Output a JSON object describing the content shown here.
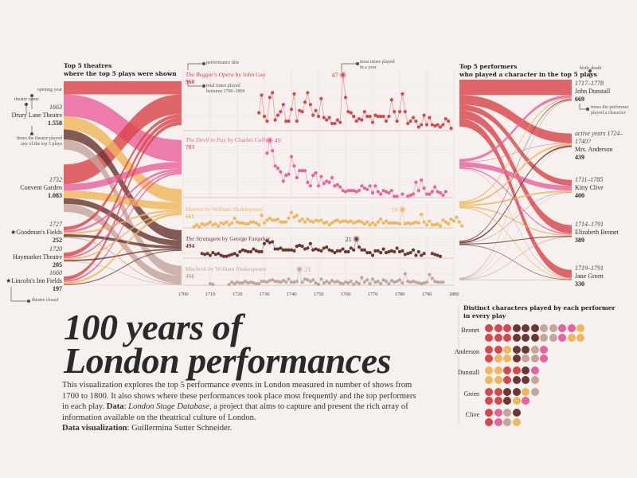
{
  "title_line1": "100 years of",
  "title_line2": "London performances",
  "description": {
    "p1": "This visualization explores the top 5 performance events in London measured in number of shows from 1700 to 1800. It also shows where these performances took place most frequently and the top performers in each play. ",
    "data_label": "Data",
    "p2": ": ",
    "source": "London Stage Database",
    "p3": ", a project that aims to capture and present the rich array of information available on the theatrical culture of London.",
    "credit_label": "Data visualization",
    "credit": ": Guillermina Sutter Schneider."
  },
  "colors": {
    "beggar": "#d9454b",
    "devil": "#e9629c",
    "hamlet": "#efb65b",
    "stratagem": "#6a3833",
    "macbeth": "#c3a59c",
    "background": "#f6f1ee"
  },
  "theatres_header": [
    "Top 5 theatres",
    "where the top 5 plays were shown"
  ],
  "performers_header": [
    "Top 5 performers",
    "who played a character in the top 5 plays"
  ],
  "distinct_header": [
    "Distinct characters played by each performer",
    "in every play"
  ],
  "annotations": {
    "opening_year": "opening year",
    "theatre_name": "theatre name",
    "times_theatre": [
      "times the theatre played",
      "any of the top 5 plays"
    ],
    "theatre_closed": "theatre closed",
    "performance_title": "performance title",
    "total_times": [
      "total times played",
      "between 1700–1800"
    ],
    "most_times": [
      "most times played",
      "in a year"
    ],
    "birth_death": "birth–death",
    "times_performer": [
      "times the performer",
      "played a character"
    ]
  },
  "theatres": [
    {
      "name": "Drury Lane Theatre",
      "year": "1663",
      "count": "1.558",
      "closed": false
    },
    {
      "name": "Convent Garden",
      "year": "1732",
      "count": "1.083",
      "closed": false
    },
    {
      "name": "Goodman's Fields",
      "year": "1727",
      "count": "252",
      "closed": true
    },
    {
      "name": "Haymarket Theatre",
      "year": "1720",
      "count": "205",
      "closed": false
    },
    {
      "name": "Lincoln's Inn Fields",
      "year": "1660",
      "count": "197",
      "closed": true
    }
  ],
  "performers": [
    {
      "name": "John Dunstall",
      "years": "1717–1778",
      "count": "669"
    },
    {
      "name": "Mrs. Anderson",
      "years": "active years 1724–1740?",
      "count": "439"
    },
    {
      "name": "Kitty Clive",
      "years": "1711–1785",
      "count": "400"
    },
    {
      "name": "Elizabeth Bennet",
      "years": "1714–1791",
      "count": "389"
    },
    {
      "name": "Jane Green",
      "years": "1719–1791",
      "count": "330"
    }
  ],
  "chart_data": {
    "type": "line",
    "x_axis": {
      "range": [
        1700,
        1800
      ],
      "ticks": [
        "1700",
        "1710",
        "1720",
        "1730",
        "1740",
        "1750",
        "1760",
        "1770",
        "1780",
        "1790",
        "1800"
      ]
    },
    "series": [
      {
        "key": "beggar",
        "title": "The Beggar's Opera",
        "author": " by John Gay",
        "total": "960",
        "peak": "47",
        "start": 1728,
        "values": [
          15,
          30,
          12,
          8,
          28,
          32,
          9,
          13,
          16,
          22,
          8,
          8,
          18,
          31,
          8,
          17,
          16,
          24,
          32,
          22,
          13,
          17,
          12,
          27,
          11,
          9,
          11,
          6,
          6,
          9,
          7,
          47,
          28,
          16,
          15,
          12,
          8,
          10,
          9,
          16,
          12,
          12,
          7,
          13,
          12,
          12,
          12,
          8,
          12,
          26,
          16,
          8,
          16,
          31,
          16,
          6,
          8,
          11,
          8,
          3,
          5,
          13,
          5,
          11,
          5,
          4,
          5,
          3,
          5,
          10,
          8,
          2
        ]
      },
      {
        "key": "devil",
        "title": "The Devil to Pay",
        "author": " by Charles Coffey",
        "total": "783",
        "peak": "49",
        "start": 1731,
        "values": [
          38,
          49,
          40,
          27,
          25,
          22,
          14,
          19,
          20,
          35,
          27,
          17,
          23,
          23,
          23,
          13,
          10,
          19,
          21,
          10,
          18,
          12,
          14,
          13,
          17,
          10,
          11,
          9,
          6,
          5,
          6,
          6,
          6,
          5,
          6,
          10,
          8,
          7,
          10,
          4,
          10,
          5,
          3,
          6,
          5,
          4,
          6,
          1,
          1,
          null,
          3,
          null,
          1,
          2,
          3,
          13,
          6,
          15,
          8,
          3,
          3,
          5,
          9,
          5,
          4,
          2,
          5
        ]
      },
      {
        "key": "hamlet",
        "title": "Hamlet",
        "author": " by William Shakespeare",
        "total": "661",
        "peak": "19",
        "start": 1704,
        "values": [
          1,
          3,
          1,
          4,
          3,
          4,
          6,
          3,
          4,
          2,
          5,
          4,
          6,
          3,
          5,
          10,
          6,
          5,
          5,
          4,
          4,
          6,
          6,
          5,
          3,
          13,
          5,
          8,
          10,
          8,
          8,
          9,
          6,
          6,
          6,
          10,
          16,
          11,
          13,
          7,
          9,
          6,
          9,
          7,
          6,
          8,
          7,
          8,
          5,
          6,
          3,
          5,
          7,
          8,
          6,
          7,
          7,
          6,
          7,
          5,
          6,
          7,
          6,
          4,
          6,
          3,
          5,
          3,
          6,
          9,
          5,
          7,
          5,
          5,
          5,
          5,
          4,
          19,
          4,
          5,
          4,
          5,
          6,
          5,
          14,
          6,
          3,
          7,
          3,
          3,
          4,
          2,
          8,
          6,
          4,
          9,
          7,
          11,
          6,
          2
        ]
      },
      {
        "key": "stratagem",
        "title": "The Stratagem",
        "author": " by George Farquhar",
        "total": "494",
        "peak": "21",
        "start": 1707,
        "values": [
          5,
          4,
          5,
          3,
          6,
          4,
          5,
          3,
          2,
          2,
          3,
          4,
          5,
          3,
          7,
          9,
          8,
          7,
          7,
          10,
          8,
          7,
          7,
          16,
          19,
          17,
          18,
          10,
          10,
          11,
          9,
          9,
          9,
          9,
          8,
          13,
          14,
          13,
          10,
          11,
          16,
          9,
          10,
          9,
          8,
          11,
          12,
          9,
          8,
          6,
          8,
          8,
          10,
          7,
          7,
          11,
          9,
          21,
          12,
          9,
          9,
          6,
          6,
          3,
          8,
          8,
          6,
          10,
          6,
          7,
          8,
          7,
          11,
          7,
          8,
          4,
          5,
          6,
          9,
          3,
          7,
          3,
          5,
          null,
          null,
          5,
          4,
          3,
          2
        ]
      },
      {
        "key": "macbeth",
        "title": "Macbeth",
        "author": " by William Shakespeare",
        "total": "466",
        "peak": "21",
        "start": 1710,
        "values": [
          2,
          1,
          null,
          null,
          null,
          null,
          null,
          1,
          4,
          2,
          4,
          3,
          3,
          5,
          3,
          4,
          3,
          2,
          2,
          5,
          5,
          4,
          6,
          7,
          5,
          5,
          4,
          6,
          4,
          8,
          4,
          4,
          5,
          21,
          4,
          8,
          7,
          5,
          7,
          3,
          1,
          8,
          3,
          5,
          3,
          6,
          4,
          5,
          3,
          2,
          4,
          3,
          5,
          1,
          4,
          2,
          10,
          4,
          7,
          2,
          8,
          4,
          5,
          2,
          7,
          5,
          2,
          6,
          4,
          5,
          7,
          3,
          15,
          5,
          4,
          5,
          4,
          3,
          2,
          3,
          4,
          14,
          9,
          5,
          4,
          4,
          4
        ]
      }
    ]
  },
  "sankey_left_flows": [
    [
      300,
      500,
      300,
      230,
      228
    ],
    [
      450,
      150,
      170,
      130,
      183
    ],
    [
      80,
      50,
      40,
      62,
      20
    ],
    [
      90,
      40,
      35,
      30,
      10
    ],
    [
      80,
      43,
      50,
      20,
      4
    ]
  ],
  "sankey_right_flows": [
    [
      480,
      300,
      180,
      260,
      250
    ],
    [
      90,
      15,
      150,
      40,
      15
    ],
    [
      40,
      60,
      50,
      40,
      30
    ],
    [
      30,
      50,
      10,
      30,
      20
    ],
    [
      29,
      14,
      10,
      19,
      15
    ]
  ],
  "distinct_characters": [
    {
      "performer": "Bennet",
      "rows": [
        [
          "beggar",
          "beggar",
          "beggar",
          "stratagem",
          "stratagem",
          "stratagem",
          "macbeth",
          "macbeth",
          "devil",
          "devil",
          "hamlet"
        ],
        [
          "beggar",
          "beggar",
          "beggar",
          "stratagem",
          "stratagem",
          "stratagem",
          "macbeth",
          "macbeth",
          "devil",
          "hamlet",
          "hamlet"
        ]
      ]
    },
    {
      "performer": "Anderson",
      "rows": [
        [
          "beggar",
          "beggar",
          "hamlet",
          "stratagem",
          "stratagem",
          "macbeth",
          "devil"
        ],
        [
          "beggar",
          "hamlet",
          "hamlet",
          "stratagem",
          "macbeth",
          "macbeth",
          "devil"
        ]
      ]
    },
    {
      "performer": "Dunstall",
      "rows": [
        [
          "hamlet",
          "hamlet",
          "beggar",
          "beggar",
          "stratagem",
          "devil"
        ],
        [
          "hamlet",
          "hamlet",
          "beggar",
          "stratagem",
          "stratagem",
          "macbeth"
        ]
      ]
    },
    {
      "performer": "Green",
      "rows": [
        [
          "beggar",
          "beggar",
          "stratagem",
          "stratagem",
          "hamlet",
          "macbeth"
        ],
        [
          "beggar",
          "beggar",
          "stratagem",
          "hamlet",
          "devil"
        ]
      ]
    },
    {
      "performer": "Clive",
      "rows": [
        [
          "beggar",
          "devil",
          "macbeth",
          "stratagem"
        ],
        [
          "beggar",
          "devil",
          "macbeth",
          "hamlet"
        ]
      ]
    }
  ]
}
